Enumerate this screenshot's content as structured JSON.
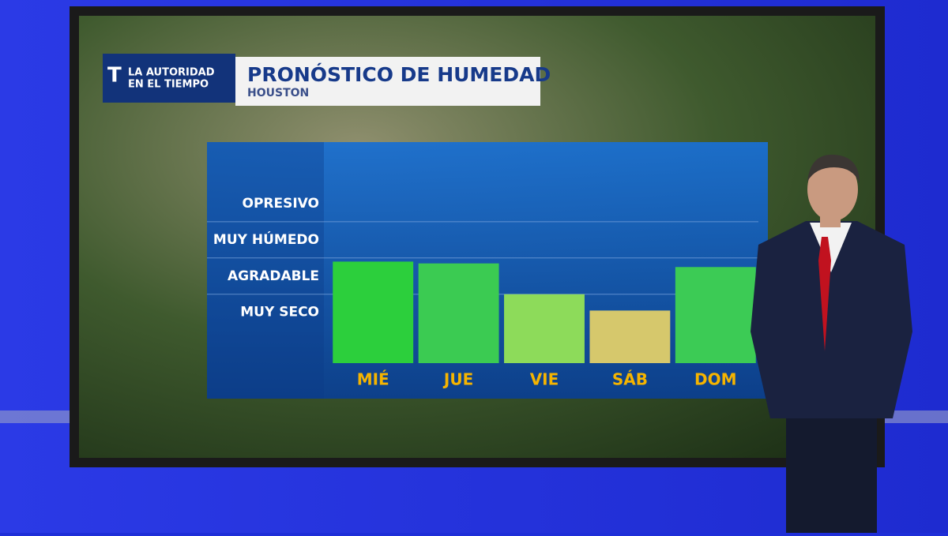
{
  "brand": {
    "line1": "LA AUTORIDAD",
    "line2": "EN EL TIEMPO"
  },
  "chart_data": {
    "type": "bar",
    "title": "PRONÓSTICO DE HUMEDAD",
    "subtitle": "HOUSTON",
    "categories": [
      "MIÉ",
      "JUE",
      "VIE",
      "SÁB",
      "DOM"
    ],
    "values": [
      2.4,
      2.35,
      1.5,
      1.05,
      2.25
    ],
    "colors": [
      "#2ccf3c",
      "#3bcb52",
      "#8ddb5a",
      "#d6c86c",
      "#3ccb55"
    ],
    "ylim": [
      -0.4,
      5.5
    ],
    "yticks": [
      {
        "value": 1,
        "label": "MUY SECO"
      },
      {
        "value": 2,
        "label": "AGRADABLE"
      },
      {
        "value": 3,
        "label": "MUY HÚMEDO"
      },
      {
        "value": 4,
        "label": "OPRESIVO"
      }
    ],
    "grid": true
  }
}
